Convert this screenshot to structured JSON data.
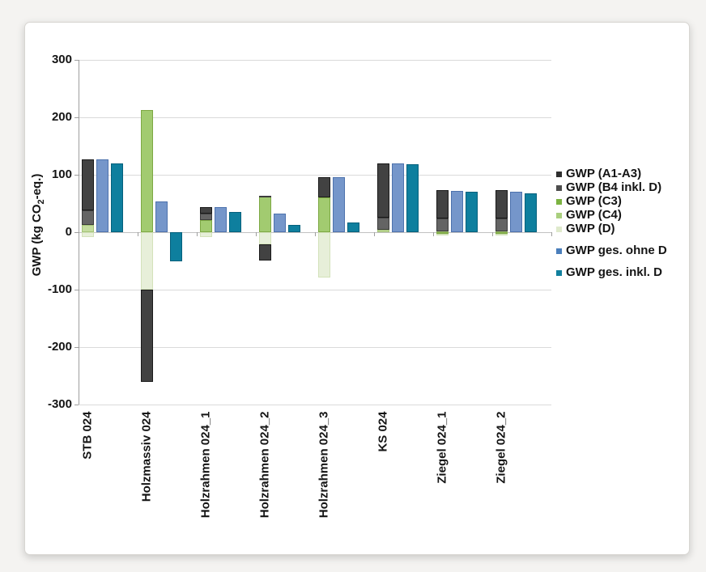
{
  "chart_data": {
    "type": "bar",
    "stacked": true,
    "title": "",
    "ylabel": "GWP (kg CO2-eq.)",
    "ylabel_parts": {
      "prefix": "GWP (kg CO",
      "sub": "2",
      "suffix": "-eq.)"
    },
    "ylim": [
      -300,
      300
    ],
    "yticks": [
      300,
      200,
      100,
      0,
      -100,
      -200,
      -300
    ],
    "grid": "horizontal",
    "legend_position": "right",
    "categories": [
      "STB 024",
      "Holzmassiv 024",
      "Holzrahmen 024_1",
      "Holzrahmen 024_2",
      "Holzrahmen 024_3",
      "KS 024",
      "Ziegel 024_1",
      "Ziegel 024_2"
    ],
    "series": [
      {
        "key": "a1a3",
        "label": "GWP (A1-A3)",
        "role": "stack",
        "fill": "#424242",
        "border": "#1a1a1a",
        "legend_color": "#2e2e2e",
        "values": [
          89,
          -160,
          12,
          -29,
          35,
          95,
          49,
          49
        ]
      },
      {
        "key": "b4",
        "label": "GWP (B4 inkl. D)",
        "role": "stack",
        "fill": "#646464",
        "border": "#3c3c3c",
        "legend_color": "#4d4d4d",
        "values": [
          26,
          0,
          11,
          2,
          0,
          21,
          22,
          22
        ]
      },
      {
        "key": "c3",
        "label": "GWP (C3)",
        "role": "stack",
        "fill": "#a2cb70",
        "border": "#7da843",
        "legend_color": "#7cb342",
        "values": [
          0,
          212,
          21,
          62,
          61,
          0,
          -3,
          -3
        ]
      },
      {
        "key": "c4",
        "label": "GWP (C4)",
        "role": "stack",
        "fill": "#c4dc9f",
        "border": "#a3c276",
        "legend_color": "#a9cf7e",
        "values": [
          12,
          0,
          0,
          0,
          0,
          4,
          2,
          2
        ]
      },
      {
        "key": "d",
        "label": "GWP (D)",
        "role": "stack",
        "fill": "#e7efd9",
        "border": "#d3e2ba",
        "legend_color": "#dfeacc",
        "values": [
          -8,
          -100,
          -9,
          -21,
          -79,
          0,
          -3,
          -3
        ]
      },
      {
        "key": "ohne",
        "label": "GWP ges. ohne D",
        "role": "bar",
        "fill": "#7596ca",
        "border": "#4d72ad",
        "legend_color": "#4a7ebb",
        "values": [
          127,
          53,
          44,
          33,
          96,
          120,
          72,
          70
        ]
      },
      {
        "key": "inkl",
        "label": "GWP ges. inkl. D",
        "role": "bar",
        "fill": "#0e7f9e",
        "border": "#04607c",
        "legend_color": "#11809e",
        "values": [
          120,
          -50,
          35,
          12,
          17,
          118,
          70,
          68
        ]
      }
    ],
    "stack_order_positive": [
      "c4",
      "c3",
      "b4",
      "a1a3"
    ],
    "stack_order_negative": [
      "c3",
      "d",
      "a1a3"
    ],
    "legend_gaps_before": [
      "ohne",
      "inkl"
    ]
  }
}
